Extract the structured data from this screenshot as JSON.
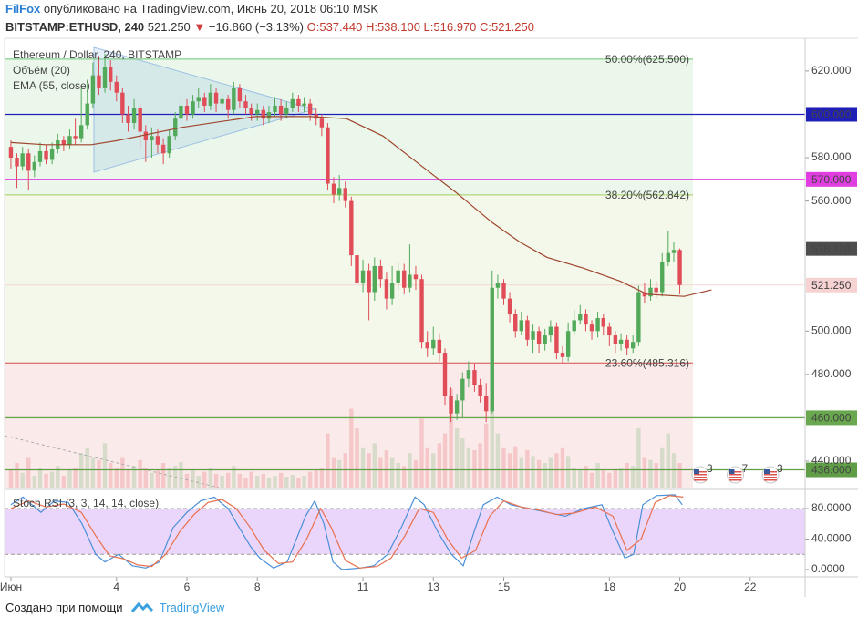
{
  "header": {
    "author": "FilFox",
    "published": "опубликовано на TradingView.com, Июнь 20, 2018 06:10 MSK",
    "symbol": "BITSTAMP:ETHUSD, 240",
    "last": "521.250",
    "arrow": "▼",
    "change": "−16.860 (−3.13%)",
    "ohlc": "O:537.440 H:538.100 L:516.970 C:521.250"
  },
  "footer": {
    "text": "Создано при помощи",
    "brand": "TradingView"
  },
  "chart_data": {
    "type": "candlestick",
    "title": "Ethereum / Dollar, 240, BITSTAMP",
    "up_color": "#53a95a",
    "down_color": "#e04c57",
    "x": [
      1,
      1.17,
      1.33,
      1.5,
      1.67,
      1.83,
      2,
      2.17,
      2.33,
      2.5,
      2.67,
      2.83,
      3,
      3.17,
      3.33,
      3.5,
      3.67,
      3.83,
      4,
      4.17,
      4.33,
      4.5,
      4.67,
      4.83,
      5,
      5.17,
      5.33,
      5.5,
      5.67,
      5.83,
      6,
      6.17,
      6.33,
      6.5,
      6.67,
      6.83,
      7,
      7.17,
      7.33,
      7.5,
      7.67,
      7.83,
      8,
      8.17,
      8.33,
      8.5,
      8.67,
      8.83,
      9,
      9.17,
      9.33,
      9.5,
      9.67,
      9.83,
      10,
      10.17,
      10.33,
      10.5,
      10.67,
      10.83,
      11,
      11.17,
      11.33,
      11.5,
      11.67,
      11.83,
      12,
      12.17,
      12.33,
      12.5,
      12.67,
      12.83,
      13,
      13.17,
      13.33,
      13.5,
      13.67,
      13.83,
      14,
      14.17,
      14.33,
      14.5,
      14.67,
      14.83,
      15,
      15.17,
      15.33,
      15.5,
      15.67,
      15.83,
      16,
      16.17,
      16.33,
      16.5,
      16.67,
      16.83,
      17,
      17.17,
      17.33,
      17.5,
      17.67,
      17.83,
      18,
      18.17,
      18.33,
      18.5,
      18.67,
      18.83,
      19,
      19.17,
      19.33,
      19.5,
      19.67,
      19.83,
      20
    ],
    "open": [
      585,
      580,
      576,
      582,
      574,
      578,
      583,
      579,
      584,
      588,
      586,
      590,
      589,
      595,
      605,
      618,
      612,
      622,
      615,
      610,
      600,
      596,
      603,
      592,
      588,
      590,
      586,
      582,
      590,
      598,
      604,
      600,
      606,
      608,
      604,
      610,
      605,
      607,
      602,
      612,
      606,
      603,
      600,
      602,
      598,
      601,
      604,
      600,
      603,
      607,
      604,
      605,
      600,
      598,
      594,
      568,
      563,
      566,
      560,
      535,
      522,
      528,
      518,
      530,
      524,
      515,
      522,
      528,
      520,
      526,
      524,
      495,
      492,
      496,
      490,
      470,
      462,
      468,
      478,
      482,
      475,
      470,
      463,
      520,
      522,
      515,
      508,
      500,
      505,
      496,
      500,
      494,
      498,
      502,
      490,
      488,
      500,
      505,
      508,
      503,
      500,
      506,
      502,
      498,
      494,
      496,
      492,
      495,
      518,
      516,
      520,
      518,
      532,
      536,
      537.44
    ],
    "high": [
      588,
      582,
      585,
      584,
      581,
      587,
      586,
      587,
      591,
      590,
      593,
      598,
      612,
      616,
      624,
      627,
      628,
      625,
      618,
      612,
      604,
      607,
      605,
      595,
      594,
      593,
      589,
      593,
      601,
      608,
      607,
      609,
      612,
      610,
      614,
      612,
      610,
      609,
      615,
      614,
      609,
      605,
      605,
      604,
      604,
      608,
      607,
      606,
      610,
      609,
      608,
      607,
      603,
      600,
      596,
      571,
      572,
      569,
      562,
      538,
      533,
      531,
      534,
      533,
      527,
      530,
      532,
      531,
      540,
      530,
      526,
      500,
      502,
      499,
      492,
      474,
      471,
      481,
      486,
      485,
      478,
      476,
      528,
      526,
      524,
      518,
      510,
      509,
      507,
      503,
      502,
      501,
      505,
      504,
      493,
      504,
      510,
      512,
      510,
      505,
      509,
      508,
      504,
      500,
      499,
      498,
      498,
      521,
      522,
      524,
      523,
      536,
      546,
      541,
      538.1
    ],
    "low": [
      575,
      566,
      574,
      565,
      571,
      576,
      577,
      577,
      582,
      583,
      584,
      586,
      587,
      593,
      603,
      609,
      610,
      611,
      606,
      596,
      592,
      593,
      585,
      578,
      580,
      582,
      577,
      580,
      588,
      596,
      597,
      598,
      603,
      601,
      602,
      601,
      602,
      598,
      600,
      603,
      600,
      597,
      597,
      595,
      596,
      599,
      597,
      598,
      601,
      601,
      601,
      597,
      595,
      590,
      565,
      559,
      560,
      557,
      530,
      510,
      518,
      505,
      514,
      520,
      510,
      512,
      519,
      517,
      518,
      519,
      492,
      488,
      489,
      486,
      466,
      458,
      459,
      460,
      474,
      472,
      467,
      458,
      462,
      515,
      512,
      504,
      497,
      498,
      493,
      490,
      490,
      491,
      495,
      487,
      485,
      486,
      498,
      503,
      500,
      496,
      497,
      498,
      493,
      490,
      491,
      489,
      490,
      493,
      513,
      514,
      515,
      516,
      530,
      532,
      516.97
    ],
    "close": [
      580,
      576,
      582,
      574,
      578,
      583,
      579,
      584,
      588,
      586,
      590,
      589,
      595,
      605,
      618,
      612,
      622,
      615,
      610,
      600,
      596,
      603,
      592,
      588,
      590,
      586,
      582,
      590,
      598,
      604,
      600,
      606,
      608,
      604,
      610,
      605,
      607,
      602,
      612,
      606,
      603,
      600,
      602,
      598,
      601,
      604,
      600,
      603,
      607,
      604,
      605,
      600,
      598,
      594,
      568,
      563,
      566,
      560,
      535,
      522,
      528,
      518,
      530,
      524,
      515,
      522,
      528,
      520,
      526,
      524,
      495,
      492,
      496,
      490,
      470,
      462,
      468,
      478,
      482,
      475,
      470,
      463,
      520,
      522,
      515,
      508,
      500,
      505,
      496,
      500,
      494,
      498,
      502,
      490,
      488,
      500,
      505,
      508,
      503,
      500,
      506,
      502,
      498,
      494,
      496,
      492,
      495,
      518,
      516,
      520,
      518,
      532,
      536,
      537.44,
      521.25
    ],
    "volume": {
      "label": "Объём (20)",
      "values": [
        18,
        25,
        15,
        30,
        12,
        20,
        14,
        16,
        22,
        12,
        18,
        20,
        35,
        40,
        30,
        28,
        45,
        25,
        20,
        30,
        18,
        22,
        28,
        20,
        15,
        18,
        25,
        20,
        22,
        26,
        14,
        18,
        12,
        16,
        20,
        14,
        12,
        15,
        22,
        14,
        10,
        16,
        12,
        14,
        10,
        12,
        15,
        11,
        13,
        10,
        12,
        16,
        18,
        20,
        55,
        30,
        28,
        35,
        80,
        60,
        40,
        35,
        45,
        30,
        38,
        30,
        25,
        22,
        35,
        28,
        70,
        40,
        35,
        45,
        55,
        100,
        60,
        50,
        40,
        38,
        45,
        65,
        90,
        55,
        40,
        35,
        42,
        30,
        38,
        32,
        28,
        25,
        30,
        35,
        40,
        32,
        20,
        18,
        22,
        15,
        25,
        18,
        15,
        18,
        20,
        25,
        22,
        60,
        30,
        28,
        25,
        40,
        55,
        35,
        25
      ]
    },
    "ema": {
      "label": "EMA (55, close)",
      "color": "#a0452d",
      "x": [
        1,
        1.98,
        3.28,
        4.06,
        5.87,
        7.94,
        9.5,
        10.53,
        11.57,
        12.6,
        13.64,
        14.68,
        15.46,
        16.23,
        17.27,
        18.31,
        19.08,
        20.12,
        20.9
      ],
      "values": [
        587,
        586,
        586,
        588,
        594,
        599,
        599,
        598,
        590,
        577,
        564,
        550,
        541,
        534,
        529,
        523,
        517,
        516,
        519
      ]
    },
    "xlim": [
      0.82,
      23.56
    ],
    "xticks": [
      {
        "value": 1,
        "label": "Июн"
      },
      4,
      6,
      8,
      11,
      13,
      15,
      18,
      20,
      22
    ],
    "ylim": [
      427.8,
      635.1
    ],
    "yticks": [
      {
        "value": 440,
        "label": "440.000"
      },
      {
        "value": 480,
        "label": "480.000"
      },
      {
        "value": 500,
        "label": "500.000"
      },
      {
        "value": 560,
        "label": "560.000"
      },
      {
        "value": 580,
        "label": "580.000"
      },
      {
        "value": 620,
        "label": "620.000"
      }
    ],
    "fib_levels": [
      {
        "value": 625.5,
        "label": "50.00%(625.500)",
        "color": "#6cc36c",
        "fill": "#eaf7ea"
      },
      {
        "value": 562.842,
        "label": "38.20%(562.842)",
        "color": "#9fcf5a",
        "fill": "#f3f8ea"
      },
      {
        "value": 485.316,
        "label": "23.60%(485.316)",
        "color": "#d64a4a",
        "fill": "#fbeaea"
      }
    ],
    "levels": [
      {
        "value": 600,
        "label": "600.000",
        "color": "#1f1fb8",
        "text_color": "#ffffff",
        "line": true
      },
      {
        "value": 570,
        "label": "570.000",
        "color": "#e03ee0",
        "text_color": "#ffffff",
        "line": true
      },
      {
        "value": 538.11,
        "label": "538.110",
        "color": "#4d4d4d",
        "text_color": "#ffffff",
        "line": false
      },
      {
        "value": 521.25,
        "label": "521.250",
        "color": "#f6d2d2",
        "text_color": "#333333",
        "line": true
      },
      {
        "value": 460,
        "label": "460.000",
        "color": "#6aa84f",
        "text_color": "#ffffff",
        "line": true
      },
      {
        "value": 436,
        "label": "436.000",
        "color": "#5f9e47",
        "text_color": "#ffffff",
        "line": true
      }
    ],
    "events": [
      "3",
      "7",
      "3"
    ],
    "stoch": {
      "type": "line",
      "label": "Stoch RSI (3, 3, 14, 14, close)",
      "ylim": [
        -9.6,
        101.5
      ],
      "yticks": [
        {
          "value": 0,
          "label": "0.0000"
        },
        {
          "value": 40,
          "label": "40.0000"
        },
        {
          "value": 80,
          "label": "80.0000"
        }
      ],
      "band": [
        20,
        80
      ],
      "band_color": "#e6ccfa",
      "series": [
        {
          "color": "#4a8fd8",
          "x": [
            1,
            1.34,
            1.85,
            2.24,
            2.63,
            3.02,
            3.41,
            3.67,
            4.06,
            4.45,
            4.83,
            5.22,
            5.61,
            6,
            6.39,
            6.78,
            7.17,
            7.42,
            7.81,
            8.07,
            8.46,
            8.85,
            9.37,
            9.63,
            9.89,
            10.15,
            10.4,
            10.92,
            11.31,
            11.7,
            12.09,
            12.48,
            12.74,
            13.12,
            13.51,
            13.85,
            14.16,
            14.42,
            14.81,
            15.2,
            15.72,
            16.23,
            16.75,
            17.27,
            17.79,
            18.05,
            18.44,
            18.69,
            18.95,
            19.34,
            19.86,
            20.07
          ],
          "values": [
            85,
            95,
            75,
            90,
            88,
            60,
            20,
            10,
            20,
            5,
            2,
            10,
            55,
            75,
            90,
            95,
            80,
            60,
            30,
            15,
            2,
            10,
            70,
            90,
            60,
            10,
            0,
            2,
            5,
            20,
            55,
            95,
            85,
            50,
            20,
            5,
            50,
            85,
            95,
            85,
            80,
            75,
            70,
            80,
            85,
            55,
            15,
            20,
            85,
            97,
            98,
            85
          ]
        },
        {
          "color": "#e8704d",
          "x": [
            1,
            1.5,
            2,
            2.5,
            3,
            3.4,
            3.8,
            4.2,
            4.6,
            5,
            5.4,
            5.8,
            6.2,
            6.6,
            7,
            7.4,
            7.8,
            8.2,
            8.6,
            9,
            9.4,
            9.8,
            10.1,
            10.5,
            10.9,
            11.4,
            11.8,
            12.2,
            12.6,
            13,
            13.4,
            13.8,
            14.2,
            14.6,
            15,
            15.5,
            16,
            16.5,
            17,
            17.6,
            18.1,
            18.5,
            18.9,
            19.3,
            19.7,
            20.1
          ],
          "values": [
            80,
            90,
            82,
            86,
            75,
            45,
            18,
            14,
            6,
            4,
            20,
            50,
            72,
            88,
            92,
            80,
            55,
            25,
            8,
            10,
            40,
            80,
            55,
            12,
            2,
            4,
            15,
            45,
            80,
            75,
            40,
            15,
            25,
            70,
            90,
            82,
            78,
            72,
            74,
            82,
            70,
            25,
            40,
            88,
            97,
            95
          ]
        }
      ]
    }
  }
}
